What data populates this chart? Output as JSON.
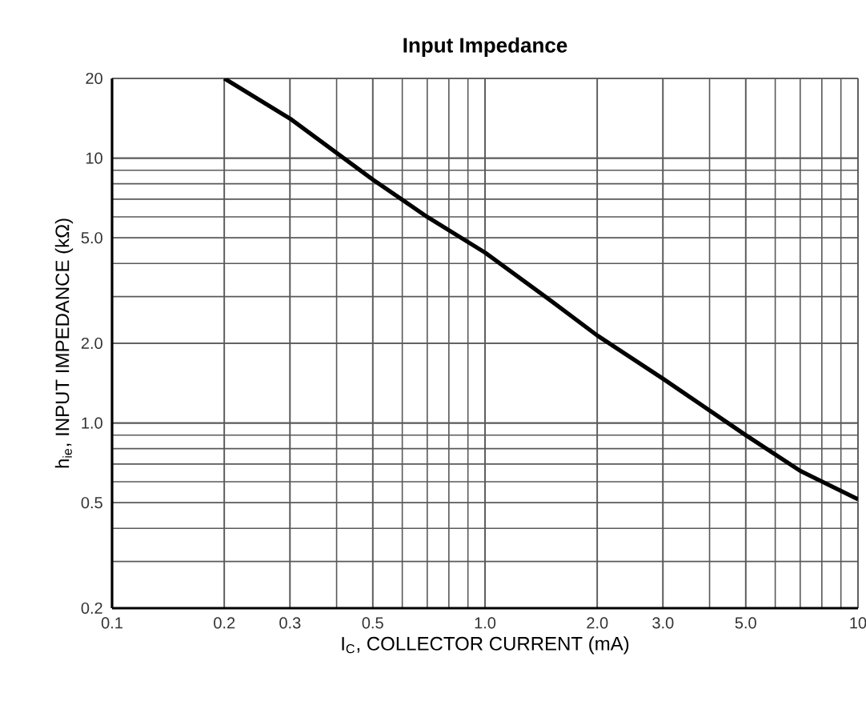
{
  "chart_data": {
    "type": "line",
    "title": "Input Impedance",
    "xlabel": "I$_{C}$, COLLECTOR CURRENT (mA)",
    "ylabel": "h$_{ie}$, INPUT IMPEDANCE (kΩ)",
    "log": "xy",
    "grid": true,
    "xlim": [
      0.1,
      10
    ],
    "ylim": [
      0.2,
      20
    ],
    "xticks": [
      0.1,
      0.2,
      0.3,
      0.5,
      {
        "value": 1,
        "label": "1.0"
      },
      {
        "value": 2,
        "label": "2.0"
      },
      {
        "value": 3,
        "label": "3.0"
      },
      {
        "value": 5,
        "label": "5.0"
      },
      10
    ],
    "yticks": [
      0.2,
      0.5,
      {
        "value": 1,
        "label": "1.0"
      },
      {
        "value": 2,
        "label": "2.0"
      },
      {
        "value": 5,
        "label": "5.0"
      },
      10,
      20
    ],
    "x": [
      0.2,
      0.3,
      0.5,
      0.7,
      1,
      1.5,
      2,
      3,
      5,
      7,
      10
    ],
    "series": [
      {
        "color": "#000000",
        "values": [
          20,
          14.1,
          8.3,
          6.0,
          4.4,
          2.9,
          2.14,
          1.47,
          0.9,
          0.66,
          0.515
        ]
      }
    ]
  }
}
